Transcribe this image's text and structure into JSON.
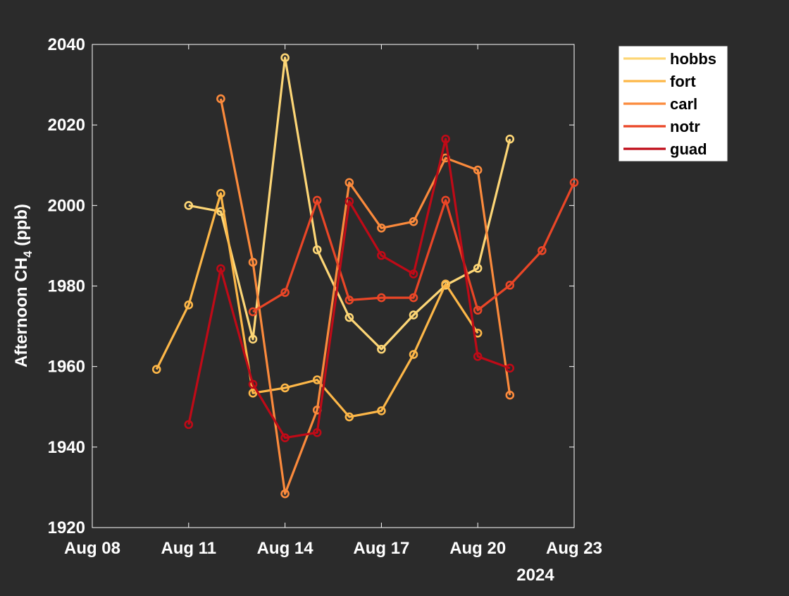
{
  "chart_data": {
    "type": "line",
    "xlabel_year": "2024",
    "ylabel": "Afternoon CH",
    "ylabel_subscript": "4",
    "ylabel_unit": " (ppb)",
    "xlim": [
      "2024-08-08",
      "2024-08-23"
    ],
    "ylim": [
      1920,
      2040
    ],
    "x_ticks": [
      "2024-08-08",
      "2024-08-11",
      "2024-08-14",
      "2024-08-17",
      "2024-08-20",
      "2024-08-23"
    ],
    "x_tick_labels": [
      "Aug 08",
      "Aug 11",
      "Aug 14",
      "Aug 17",
      "Aug 20",
      "Aug 23"
    ],
    "y_ticks": [
      1920,
      1940,
      1960,
      1980,
      2000,
      2020,
      2040
    ],
    "y_tick_labels": [
      "1920",
      "1940",
      "1960",
      "1980",
      "2000",
      "2020",
      "2040"
    ],
    "grid": false,
    "legend_position": "top-right outside plot",
    "marker": "circle",
    "background": "#2b2b2b",
    "axes_color": "#ffffff",
    "series": [
      {
        "name": "hobbs",
        "color": "#fdd676",
        "x": [
          "2024-08-11",
          "2024-08-12",
          "2024-08-13",
          "2024-08-14",
          "2024-08-15",
          "2024-08-16",
          "2024-08-17",
          "2024-08-18",
          "2024-08-19",
          "2024-08-20",
          "2024-08-21"
        ],
        "y": [
          2000.0,
          1998.5,
          1966.8,
          2036.7,
          1989.0,
          1972.2,
          1964.3,
          1972.8,
          1980.2,
          1984.4,
          2016.5
        ]
      },
      {
        "name": "fort",
        "color": "#fdb748",
        "x": [
          "2024-08-10",
          "2024-08-11",
          "2024-08-12",
          "2024-08-13",
          "2024-08-14",
          "2024-08-15",
          "2024-08-16",
          "2024-08-17",
          "2024-08-18",
          "2024-08-19",
          "2024-08-20"
        ],
        "y": [
          1959.3,
          1975.3,
          2003.0,
          1953.4,
          1954.7,
          1956.7,
          1947.5,
          1949.0,
          1963.0,
          1980.5,
          1968.3
        ]
      },
      {
        "name": "carl",
        "color": "#fb8a3c",
        "x": [
          "2024-08-12",
          "2024-08-13",
          "2024-08-14",
          "2024-08-15",
          "2024-08-16",
          "2024-08-17",
          "2024-08-18",
          "2024-08-19",
          "2024-08-20",
          "2024-08-21"
        ],
        "y": [
          2026.5,
          1985.9,
          1928.4,
          1949.2,
          2005.7,
          1994.4,
          1996.0,
          2011.8,
          2008.8,
          1952.9
        ]
      },
      {
        "name": "notr",
        "color": "#ea4627",
        "x": [
          "2024-08-13",
          "2024-08-14",
          "2024-08-15",
          "2024-08-16",
          "2024-08-17",
          "2024-08-18",
          "2024-08-19",
          "2024-08-20",
          "2024-08-21",
          "2024-08-22",
          "2024-08-23"
        ],
        "y": [
          1973.6,
          1978.4,
          2001.3,
          1976.5,
          1977.1,
          1977.1,
          2001.3,
          1974.0,
          1980.2,
          1988.8,
          2005.7
        ]
      },
      {
        "name": "guad",
        "color": "#bf0a17",
        "x": [
          "2024-08-11",
          "2024-08-12",
          "2024-08-13",
          "2024-08-14",
          "2024-08-15",
          "2024-08-16",
          "2024-08-17",
          "2024-08-18",
          "2024-08-19",
          "2024-08-20",
          "2024-08-21"
        ],
        "y": [
          1945.6,
          1984.3,
          1955.6,
          1942.3,
          1943.6,
          2001.0,
          1987.6,
          1983.0,
          2016.5,
          1962.5,
          1959.6
        ]
      }
    ]
  }
}
